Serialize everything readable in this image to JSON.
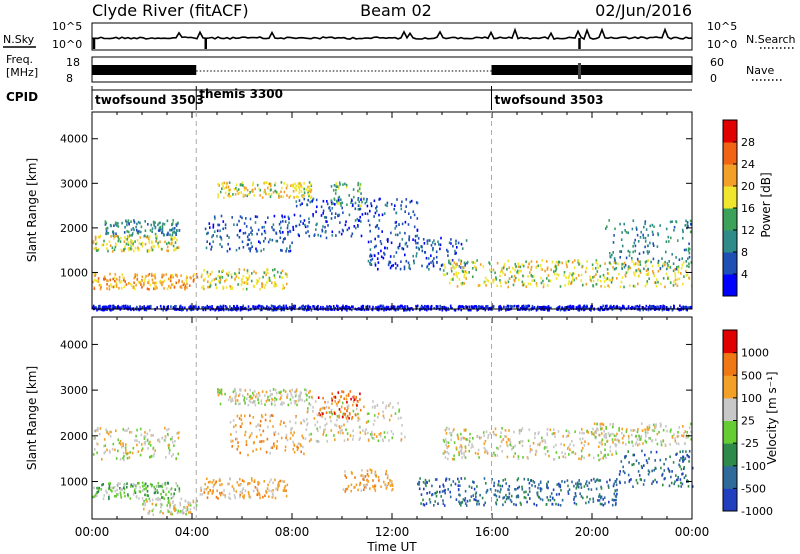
{
  "header": {
    "station": "Clyde River (fitACF)",
    "beam": "Beam 02",
    "date": "02/Jun/2016"
  },
  "noise_panel": {
    "left_label": "N.Sky",
    "right_label": "N.Search",
    "right_line_style": "dotted",
    "left_ticks": [
      "10^5",
      "10^0"
    ],
    "right_ticks": [
      "10^5",
      "10^0"
    ]
  },
  "freq_panel": {
    "left_label_1": "Freq.",
    "left_label_2": "[MHz]",
    "left_ticks": [
      "18",
      "8"
    ],
    "right_label": "Nave",
    "right_line_style": "dotted",
    "right_ticks": [
      "60",
      "0"
    ]
  },
  "cpid_panel": {
    "label": "CPID",
    "segments": [
      {
        "name": "twofsound 3503",
        "start_hour": 0.0
      },
      {
        "name": "themis 3300",
        "start_hour": 4.17
      },
      {
        "name": "twofsound 3503",
        "start_hour": 15.98
      }
    ]
  },
  "chart_data": [
    {
      "type": "heatmap",
      "parameter": "power",
      "ylabel": "Slant Range [km]",
      "xlabel": "",
      "xlim_hours": [
        0,
        24
      ],
      "ylim": [
        180,
        4600
      ],
      "y_ticks": [
        1000,
        2000,
        3000,
        4000
      ],
      "colorbar": {
        "label": "Power [dB]",
        "ticks": [
          "28",
          "24",
          "20",
          "16",
          "12",
          "8",
          "4"
        ],
        "colors": [
          "#0000ff",
          "#1e4fb4",
          "#2f8a8a",
          "#3ca25a",
          "#f0e62d",
          "#f2a028",
          "#f06414",
          "#e00000"
        ]
      },
      "scatter_regions": [
        {
          "t0": 0.0,
          "t1": 4.2,
          "r0": 650,
          "r1": 1000,
          "level": 5
        },
        {
          "t0": 0.0,
          "t1": 3.5,
          "r0": 1500,
          "r1": 1850,
          "level": 4
        },
        {
          "t0": 0.5,
          "t1": 3.5,
          "r0": 1850,
          "r1": 2200,
          "level": 2
        },
        {
          "t0": 4.3,
          "t1": 7.8,
          "r0": 650,
          "r1": 1100,
          "level": 4
        },
        {
          "t0": 5.0,
          "t1": 8.8,
          "r0": 2700,
          "r1": 3050,
          "level": 4
        },
        {
          "t0": 4.5,
          "t1": 8.0,
          "r0": 1500,
          "r1": 2300,
          "level": 1
        },
        {
          "t0": 9.5,
          "t1": 10.8,
          "r0": 2500,
          "r1": 3050,
          "level": 3
        },
        {
          "t0": 8.0,
          "t1": 13.0,
          "r0": 1800,
          "r1": 2700,
          "level": 1
        },
        {
          "t0": 11.0,
          "t1": 15.0,
          "r0": 1100,
          "r1": 1800,
          "level": 1
        },
        {
          "t0": 14.0,
          "t1": 24.0,
          "r0": 700,
          "r1": 1300,
          "level": 4
        },
        {
          "t0": 20.5,
          "t1": 24.0,
          "r0": 1100,
          "r1": 2200,
          "level": 2
        },
        {
          "t0": 0.0,
          "t1": 24.0,
          "r0": 180,
          "r1": 280,
          "level": 0
        }
      ]
    },
    {
      "type": "heatmap",
      "parameter": "velocity",
      "ylabel": "Slant Range [km]",
      "xlabel": "Time UT",
      "xlim_hours": [
        0,
        24
      ],
      "x_tick_labels": [
        "00:00",
        "04:00",
        "08:00",
        "12:00",
        "16:00",
        "20:00",
        "00:00"
      ],
      "ylim": [
        180,
        4600
      ],
      "y_ticks": [
        1000,
        2000,
        3000,
        4000
      ],
      "colorbar": {
        "label": "Velocity [m s⁻¹]",
        "ticks": [
          "1000",
          "500",
          "100",
          "25",
          "-25",
          "-100",
          "-500",
          "-1000"
        ],
        "colors": [
          "#2040c0",
          "#2e6a9a",
          "#2e8a4a",
          "#66cc33",
          "#c8c8c8",
          "#f2a028",
          "#f07814",
          "#e00000"
        ]
      },
      "scatter_regions": [
        {
          "t0": 0.0,
          "t1": 3.5,
          "r0": 650,
          "r1": 1000,
          "level": 3
        },
        {
          "t0": 0.0,
          "t1": 3.5,
          "r0": 1500,
          "r1": 2200,
          "level": 4
        },
        {
          "t0": 2.0,
          "t1": 4.2,
          "r0": 300,
          "r1": 650,
          "level": 4
        },
        {
          "t0": 4.3,
          "t1": 7.8,
          "r0": 650,
          "r1": 1100,
          "level": 5
        },
        {
          "t0": 5.0,
          "t1": 8.8,
          "r0": 2700,
          "r1": 3050,
          "level": 4
        },
        {
          "t0": 5.5,
          "t1": 8.5,
          "r0": 1600,
          "r1": 2500,
          "level": 5
        },
        {
          "t0": 8.5,
          "t1": 12.5,
          "r0": 1900,
          "r1": 2800,
          "level": 4
        },
        {
          "t0": 9.0,
          "t1": 10.8,
          "r0": 2400,
          "r1": 3000,
          "level": 6
        },
        {
          "t0": 10.0,
          "t1": 12.0,
          "r0": 800,
          "r1": 1300,
          "level": 5
        },
        {
          "t0": 13.0,
          "t1": 21.0,
          "r0": 500,
          "r1": 1100,
          "level": 1
        },
        {
          "t0": 14.0,
          "t1": 21.0,
          "r0": 1500,
          "r1": 2200,
          "level": 4
        },
        {
          "t0": 21.0,
          "t1": 24.0,
          "r0": 900,
          "r1": 1700,
          "level": 1
        },
        {
          "t0": 20.0,
          "t1": 24.0,
          "r0": 1800,
          "r1": 2300,
          "level": 4
        }
      ]
    }
  ]
}
